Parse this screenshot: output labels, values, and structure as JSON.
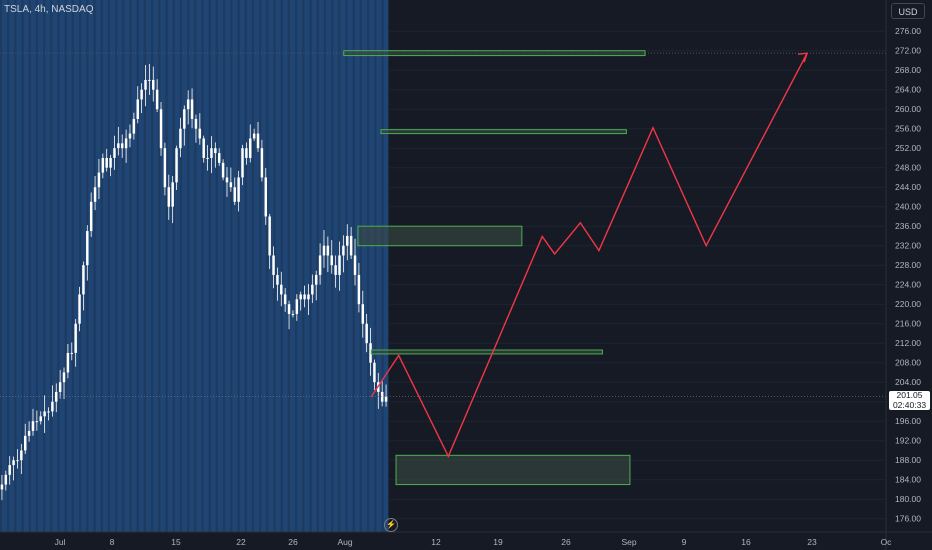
{
  "header": {
    "symbol": "TSLA, 4h, NASDAQ",
    "currency_button": "USD"
  },
  "last_price": {
    "value": "201.05",
    "countdown": "02:40:33"
  },
  "colors": {
    "background": "#161a25",
    "session_fill": "#1e3a5f",
    "session_stripe": "#1f4e85",
    "candle": "#ffffff",
    "zone_border": "#4caf50",
    "zone_fill": "#3b4a45",
    "projection": "#f23645",
    "axis_text": "#b2b5be",
    "grid": "#1f2430"
  },
  "chart_data": {
    "type": "candlestick",
    "timeframe": "4h",
    "x_axis": {
      "labels": [
        "Jul",
        "8",
        "15",
        "22",
        "26",
        "Aug",
        "12",
        "19",
        "26",
        "Sep",
        "9",
        "16",
        "23",
        "Oc"
      ]
    },
    "y_axis": {
      "range": [
        174,
        278
      ],
      "ticks": [
        "176.00",
        "180.00",
        "184.00",
        "188.00",
        "192.00",
        "196.00",
        "200.00",
        "204.00",
        "208.00",
        "212.00",
        "216.00",
        "220.00",
        "224.00",
        "228.00",
        "232.00",
        "236.00",
        "240.00",
        "244.00",
        "248.00",
        "252.00",
        "256.00",
        "260.00",
        "264.00",
        "268.00",
        "272.00",
        "276.00"
      ]
    },
    "candles_approx_close": [
      183,
      185,
      187,
      188,
      188,
      190,
      193,
      194,
      196,
      196,
      197,
      198,
      198,
      200,
      202,
      204,
      206,
      210,
      210,
      216,
      222,
      228,
      235,
      241,
      244,
      247,
      250,
      248,
      250,
      252,
      253,
      252,
      254,
      255,
      258,
      262,
      264,
      266,
      266,
      264,
      260,
      252,
      244,
      240,
      245,
      252,
      256,
      260,
      262,
      258,
      256,
      254,
      250,
      250,
      252,
      251,
      249,
      246,
      245,
      244,
      241,
      246,
      252,
      250,
      254,
      255,
      252,
      246,
      238,
      230,
      226,
      224,
      222,
      220,
      218,
      218,
      221,
      222,
      221,
      222,
      224,
      226,
      230,
      232,
      230,
      228,
      226,
      230,
      232,
      234,
      230,
      226,
      220,
      216,
      212,
      208,
      204,
      202,
      200,
      201
    ],
    "zones": [
      {
        "low": 271.0,
        "high": 272.0,
        "from": 0.388,
        "to": 0.728
      },
      {
        "low": 255.0,
        "high": 255.8,
        "from": 0.43,
        "to": 0.707
      },
      {
        "low": 232.0,
        "high": 236.0,
        "from": 0.404,
        "to": 0.589
      },
      {
        "low": 209.8,
        "high": 210.6,
        "from": 0.419,
        "to": 0.68
      },
      {
        "low": 183.0,
        "high": 189.0,
        "from": 0.447,
        "to": 0.711
      }
    ],
    "projection_path": [
      [
        201.0,
        0.419
      ],
      [
        209.5,
        0.45
      ],
      [
        188.8,
        0.506
      ],
      [
        233.9,
        0.612
      ],
      [
        230.3,
        0.626
      ],
      [
        236.7,
        0.655
      ],
      [
        231.0,
        0.676
      ],
      [
        256.2,
        0.737
      ],
      [
        232.0,
        0.797
      ],
      [
        271.5,
        0.911
      ]
    ],
    "last_price": 201.05,
    "grid": true
  }
}
